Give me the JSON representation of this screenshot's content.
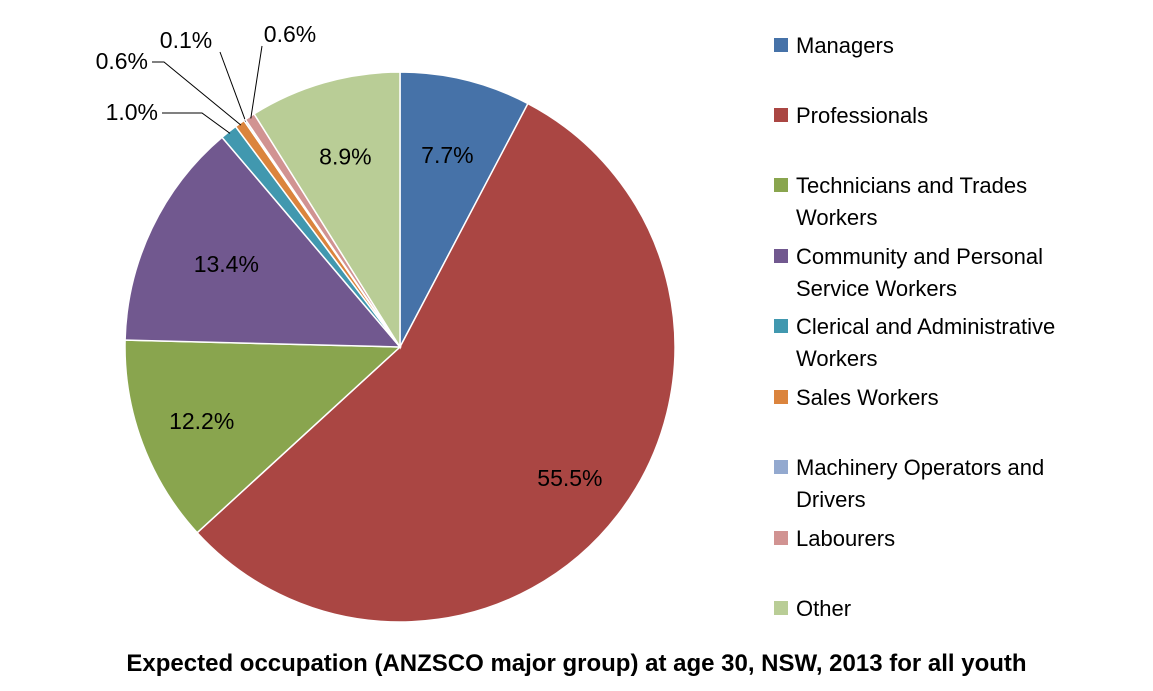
{
  "chart_data": {
    "type": "pie",
    "title": "Expected occupation (ANZSCO major group) at age 30, NSW, 2013 for all youth",
    "slices": [
      {
        "name": "Managers",
        "value": 7.7,
        "label": "7.7%",
        "color": "#4672A8"
      },
      {
        "name": "Professionals",
        "value": 55.5,
        "label": "55.5%",
        "color": "#AA4643"
      },
      {
        "name": "Technicians and Trades Workers",
        "value": 12.2,
        "label": "12.2%",
        "color": "#89A54E"
      },
      {
        "name": "Community and Personal Service Workers",
        "value": 13.4,
        "label": "13.4%",
        "color": "#71588F"
      },
      {
        "name": "Clerical and Administrative Workers",
        "value": 1.0,
        "label": "1.0%",
        "color": "#4198AF"
      },
      {
        "name": "Sales Workers",
        "value": 0.6,
        "label": "0.6%",
        "color": "#DB843D"
      },
      {
        "name": "Machinery Operators and Drivers",
        "value": 0.1,
        "label": "0.1%",
        "color": "#93A9CF"
      },
      {
        "name": "Labourers",
        "value": 0.6,
        "label": "0.6%",
        "color": "#D19392"
      },
      {
        "name": "Other",
        "value": 8.9,
        "label": "8.9%",
        "color": "#B9CD96"
      }
    ],
    "legend_position": "right"
  },
  "legend": {
    "items": [
      {
        "label": "Managers",
        "color": "#4672A8"
      },
      {
        "label": "Professionals",
        "color": "#AA4643"
      },
      {
        "label": "Technicians and Trades Workers",
        "color": "#89A54E"
      },
      {
        "label": "Community and Personal Service Workers",
        "color": "#71588F"
      },
      {
        "label": "Clerical and Administrative Workers",
        "color": "#4198AF"
      },
      {
        "label": "Sales Workers",
        "color": "#DB843D"
      },
      {
        "label": "Machinery Operators and Drivers",
        "color": "#93A9CF"
      },
      {
        "label": "Labourers",
        "color": "#D19392"
      },
      {
        "label": "Other",
        "color": "#B9CD96"
      }
    ]
  }
}
